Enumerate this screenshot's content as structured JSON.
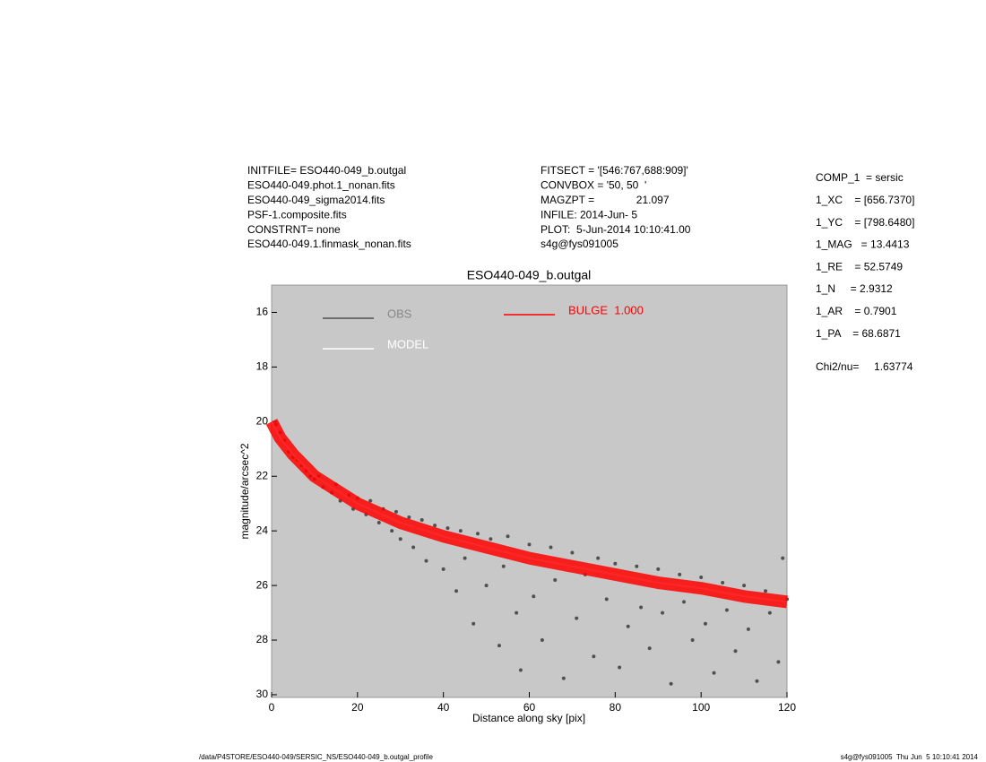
{
  "header": {
    "left": [
      "INITFILE= ESO440-049_b.outgal",
      "ESO440-049.phot.1_nonan.fits",
      "ESO440-049_sigma2014.fits",
      "PSF-1.composite.fits",
      "CONSTRNT= none",
      "ESO440-049.1.finmask_nonan.fits"
    ],
    "middle": [
      "FITSECT = '[546:767,688:909]'",
      "CONVBOX = '50, 50  '",
      "MAGZPT =              21.097",
      "INFILE: 2014-Jun- 5",
      "PLOT:  5-Jun-2014 10:10:41.00",
      "s4g@fys091005"
    ]
  },
  "params": [
    "COMP_1  = sersic",
    "1_XC    = [656.7370]",
    "1_YC    = [798.6480]",
    "1_MAG   = 13.4413",
    "1_RE    = 52.5749",
    "1_N     = 2.9312",
    "1_AR    = 0.7901",
    "1_PA    = 68.6871"
  ],
  "chi2": "Chi2/nu=     1.63774",
  "footer": {
    "left": "/data/P4STORE/ESO440-049/SERSIC_NS/ESO440-049_b.outgal_profile",
    "right": "s4g@fys091005  Thu Jun  5 10:10:41 2014"
  },
  "chart_data": {
    "type": "scatter",
    "title": "ESO440-049_b.outgal",
    "x_label": "Distance along sky [pix]",
    "y_label": "magnitude/arcsec^2",
    "xlim": [
      0,
      120
    ],
    "xticks": [
      0,
      20,
      40,
      60,
      80,
      100,
      120
    ],
    "ylim": [
      15,
      30.1
    ],
    "yticks": [
      16,
      18,
      20,
      22,
      24,
      26,
      28,
      30
    ],
    "y_inverted": true,
    "background": "#c8c8c8",
    "series": [
      {
        "name": "OBS",
        "color": "#505050",
        "mode": "markers",
        "x": [
          1,
          2,
          3,
          4,
          5,
          6,
          7,
          8,
          9,
          10,
          11,
          12,
          14,
          15,
          16,
          18,
          19,
          20,
          22,
          23,
          25,
          26,
          28,
          29,
          30,
          32,
          33,
          35,
          36,
          38,
          40,
          41,
          43,
          44,
          45,
          47,
          48,
          50,
          51,
          53,
          54,
          55,
          57,
          58,
          60,
          61,
          63,
          65,
          66,
          68,
          70,
          71,
          73,
          75,
          76,
          78,
          80,
          81,
          83,
          85,
          86,
          88,
          90,
          91,
          93,
          95,
          96,
          98,
          100,
          101,
          103,
          105,
          106,
          108,
          110,
          111,
          113,
          115,
          116,
          118,
          119,
          120
        ],
        "values": [
          20.1,
          20.4,
          20.7,
          21.1,
          21.3,
          21.4,
          21.6,
          21.8,
          22.0,
          22.1,
          22.0,
          22.4,
          22.6,
          22.3,
          22.9,
          22.7,
          23.2,
          22.8,
          23.4,
          22.9,
          23.7,
          23.2,
          24.0,
          23.3,
          24.3,
          23.5,
          24.6,
          23.6,
          25.1,
          23.8,
          25.4,
          23.9,
          26.2,
          24.0,
          25.0,
          27.4,
          24.1,
          26.0,
          24.3,
          28.2,
          25.3,
          24.2,
          27.0,
          29.1,
          24.5,
          26.4,
          28.0,
          24.6,
          25.8,
          29.4,
          24.8,
          27.2,
          25.6,
          28.6,
          25.0,
          26.5,
          25.2,
          29.0,
          27.5,
          25.3,
          26.8,
          28.3,
          25.4,
          27.0,
          29.6,
          25.6,
          26.6,
          28.0,
          25.7,
          27.4,
          29.2,
          25.9,
          26.9,
          28.4,
          26.0,
          27.6,
          29.5,
          26.2,
          27.0,
          28.8,
          25.0,
          26.5
        ]
      },
      {
        "name": "MODEL",
        "color": "#ffffff",
        "mode": "lines",
        "x": [
          0,
          2,
          5,
          10,
          15,
          20,
          30,
          40,
          50,
          60,
          70,
          80,
          90,
          100,
          110,
          120
        ],
        "values": [
          20.0,
          20.6,
          21.2,
          22.0,
          22.5,
          23.0,
          23.7,
          24.2,
          24.6,
          25.0,
          25.3,
          25.6,
          25.9,
          26.1,
          26.4,
          26.6
        ]
      },
      {
        "name": "BULGE  1.000",
        "color": "#ff0000",
        "mode": "lines",
        "x": [
          0,
          2,
          5,
          10,
          15,
          20,
          30,
          40,
          50,
          60,
          70,
          80,
          90,
          100,
          110,
          120
        ],
        "values": [
          20.0,
          20.6,
          21.2,
          22.0,
          22.5,
          23.0,
          23.7,
          24.2,
          24.6,
          25.0,
          25.3,
          25.6,
          25.9,
          26.1,
          26.4,
          26.6
        ]
      }
    ]
  }
}
